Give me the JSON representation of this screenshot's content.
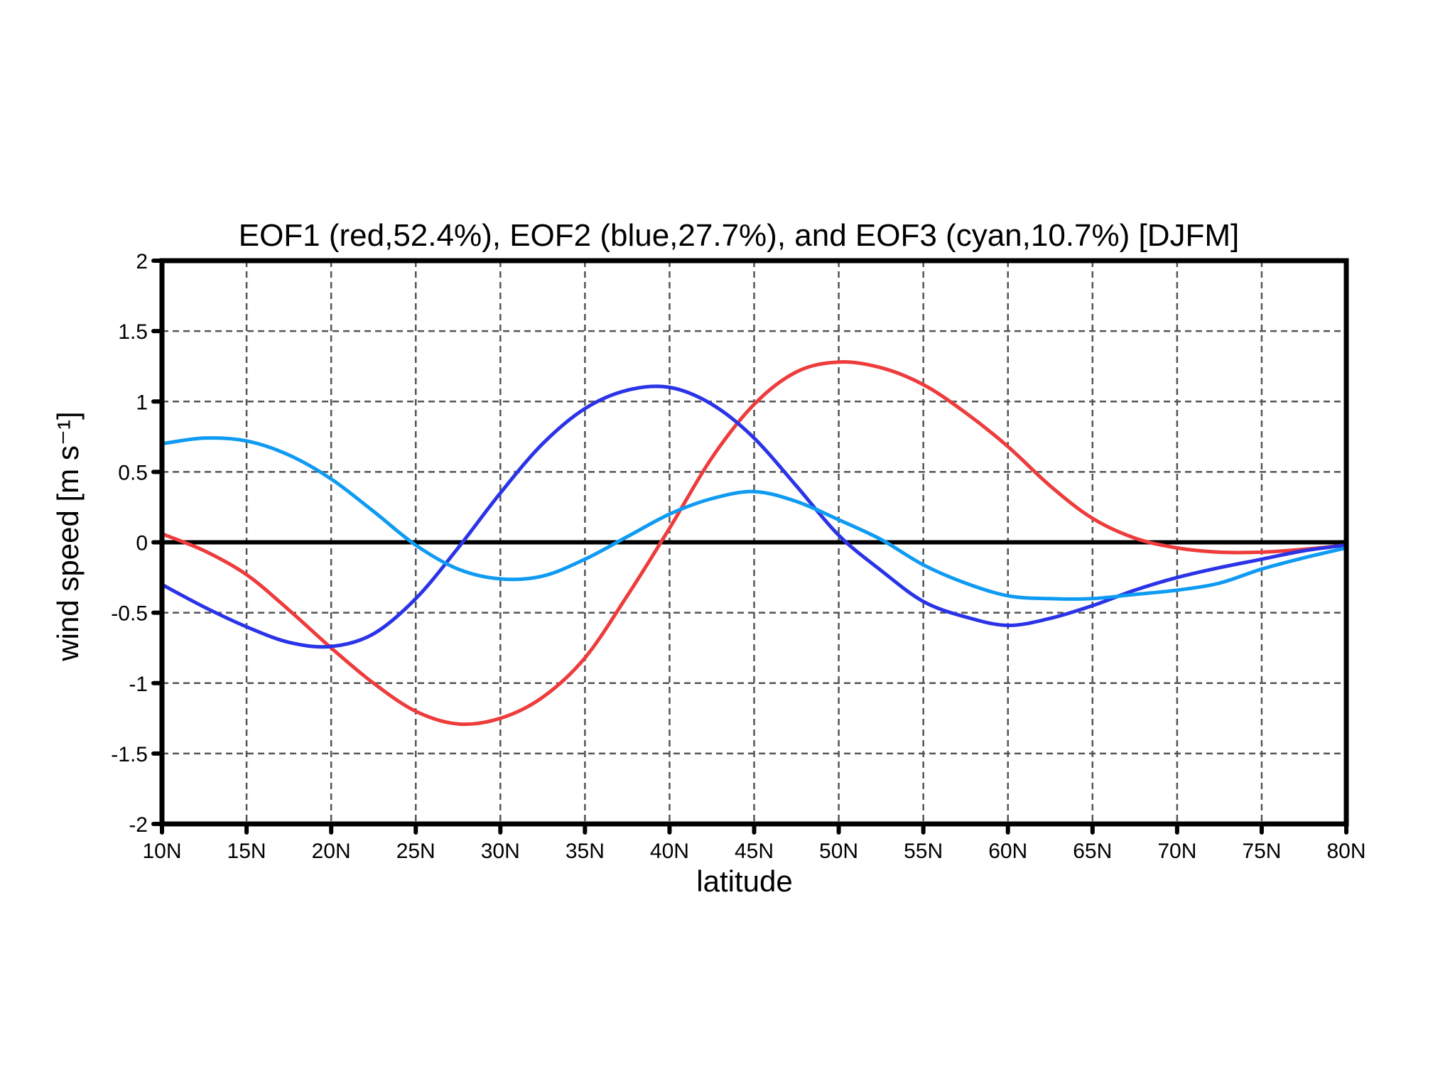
{
  "chart_data": {
    "type": "line",
    "title": "EOF1 (red,52.4%), EOF2 (blue,27.7%), and EOF3 (cyan,10.7%) [DJFM]",
    "xlabel": "latitude",
    "ylabel": "wind speed [m s⁻¹]",
    "xlim": [
      10,
      80
    ],
    "ylim": [
      -2,
      2
    ],
    "xticks": [
      10,
      15,
      20,
      25,
      30,
      35,
      40,
      45,
      50,
      55,
      60,
      65,
      70,
      75,
      80
    ],
    "xtick_labels": [
      "10N",
      "15N",
      "20N",
      "25N",
      "30N",
      "35N",
      "40N",
      "45N",
      "50N",
      "55N",
      "60N",
      "65N",
      "70N",
      "75N",
      "80N"
    ],
    "yticks": [
      -2,
      -1.5,
      -1,
      -0.5,
      0,
      0.5,
      1,
      1.5,
      2
    ],
    "ytick_labels": [
      "-2",
      "-1.5",
      "-1",
      "-0.5",
      "0",
      "0.5",
      "1",
      "1.5",
      "2"
    ],
    "grid": true,
    "zero_line": true,
    "x": [
      10,
      12.5,
      15,
      17.5,
      20,
      22.5,
      25,
      27.5,
      30,
      32.5,
      35,
      37.5,
      40,
      42.5,
      45,
      47.5,
      50,
      52.5,
      55,
      57.5,
      60,
      62.5,
      65,
      67.5,
      70,
      72.5,
      75,
      77.5,
      80
    ],
    "series": [
      {
        "color": "#ee3b3b",
        "values": [
          0.06,
          -0.06,
          -0.23,
          -0.48,
          -0.75,
          -1.0,
          -1.2,
          -1.29,
          -1.25,
          -1.1,
          -0.82,
          -0.38,
          0.1,
          0.6,
          0.98,
          1.21,
          1.28,
          1.24,
          1.12,
          0.92,
          0.68,
          0.4,
          0.17,
          0.03,
          -0.04,
          -0.07,
          -0.07,
          -0.05,
          -0.02
        ]
      },
      {
        "color": "#2a33e8",
        "values": [
          -0.3,
          -0.46,
          -0.6,
          -0.71,
          -0.74,
          -0.65,
          -0.4,
          -0.04,
          0.35,
          0.7,
          0.95,
          1.08,
          1.1,
          0.98,
          0.74,
          0.4,
          0.05,
          -0.2,
          -0.42,
          -0.53,
          -0.59,
          -0.54,
          -0.45,
          -0.34,
          -0.25,
          -0.18,
          -0.12,
          -0.06,
          -0.02
        ]
      },
      {
        "color": "#0f9bf2",
        "values": [
          0.7,
          0.74,
          0.72,
          0.62,
          0.45,
          0.22,
          -0.02,
          -0.19,
          -0.26,
          -0.24,
          -0.12,
          0.04,
          0.2,
          0.31,
          0.36,
          0.29,
          0.16,
          0.02,
          -0.16,
          -0.29,
          -0.38,
          -0.4,
          -0.4,
          -0.37,
          -0.34,
          -0.29,
          -0.19,
          -0.11,
          -0.04
        ]
      }
    ]
  }
}
